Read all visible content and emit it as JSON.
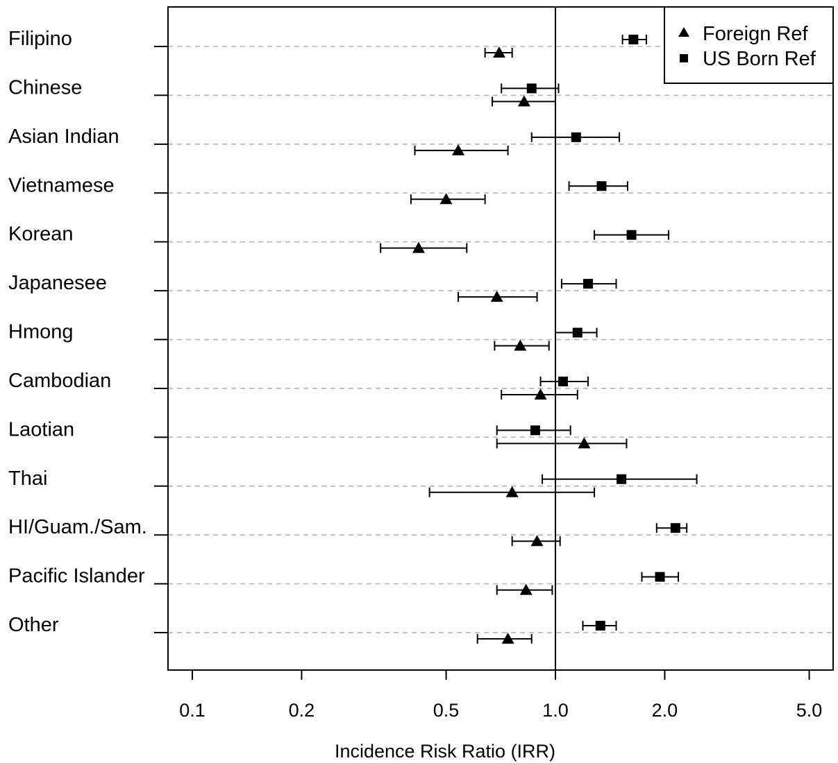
{
  "chart_data": {
    "type": "forest",
    "title": "",
    "xlabel": "Incidence Risk Ratio (IRR)",
    "ylabel": "",
    "x_scale": "log",
    "xlim": [
      0.09,
      5.8
    ],
    "x_ticks": [
      0.1,
      0.2,
      0.5,
      1.0,
      2.0,
      5.0
    ],
    "x_tick_labels": [
      "0.1",
      "0.2",
      "0.5",
      "1.0",
      "2.0",
      "5.0"
    ],
    "reference_line": 1.0,
    "grid": "horizontal dashed",
    "legend": {
      "placement": "top-right",
      "entries": [
        {
          "label": "Foreign Ref",
          "marker": "triangle"
        },
        {
          "label": "US Born Ref",
          "marker": "square"
        }
      ]
    },
    "categories": [
      "Filipino",
      "Chinese",
      "Asian Indian",
      "Vietnamese",
      "Korean",
      "Japanesee",
      "Hmong",
      "Cambodian",
      "Laotian",
      "Thai",
      "HI/Guam./Sam.",
      "Pacific Islander",
      "Other"
    ],
    "series": [
      {
        "name": "US Born Ref",
        "marker": "square",
        "estimate": [
          1.64,
          0.86,
          1.14,
          1.34,
          1.62,
          1.23,
          1.15,
          1.05,
          0.88,
          1.52,
          2.14,
          1.94,
          1.33
        ],
        "lower": [
          1.53,
          0.71,
          0.86,
          1.09,
          1.28,
          1.04,
          1.0,
          0.91,
          0.69,
          0.92,
          1.9,
          1.73,
          1.19
        ],
        "upper": [
          1.78,
          1.02,
          1.5,
          1.58,
          2.05,
          1.47,
          1.3,
          1.23,
          1.1,
          2.45,
          2.3,
          2.18,
          1.47
        ]
      },
      {
        "name": "Foreign Ref",
        "marker": "triangle",
        "estimate": [
          0.7,
          0.82,
          0.54,
          0.5,
          0.42,
          0.69,
          0.8,
          0.91,
          1.2,
          0.76,
          0.89,
          0.83,
          0.74
        ],
        "lower": [
          0.64,
          0.67,
          0.41,
          0.4,
          0.33,
          0.54,
          0.68,
          0.71,
          0.69,
          0.45,
          0.76,
          0.69,
          0.61
        ],
        "upper": [
          0.76,
          1.0,
          0.74,
          0.64,
          0.57,
          0.89,
          0.96,
          1.15,
          1.57,
          1.28,
          1.03,
          0.98,
          0.86
        ]
      }
    ]
  }
}
